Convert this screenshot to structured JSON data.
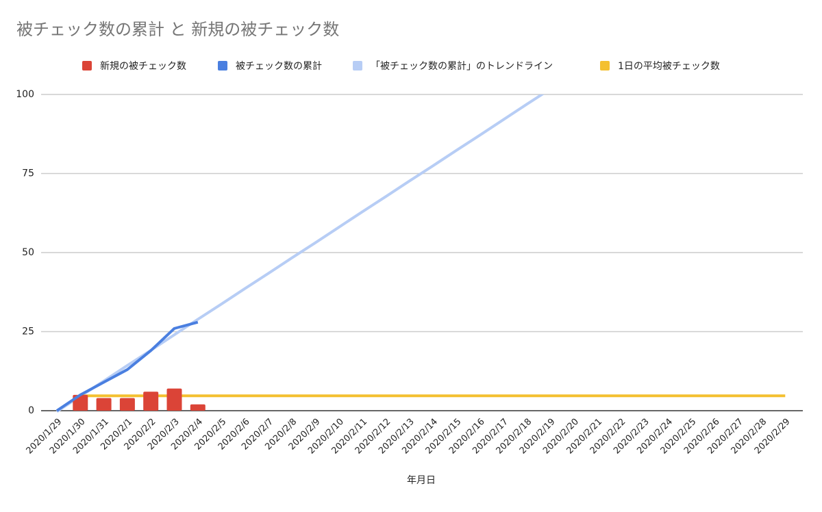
{
  "chart_data": {
    "type": "combo",
    "title": "被チェック数の累計 と 新規の被チェック数",
    "x_label": "年月日",
    "categories": [
      "2020/1/29",
      "2020/1/30",
      "2020/1/31",
      "2020/2/1",
      "2020/2/2",
      "2020/2/3",
      "2020/2/4",
      "2020/2/5",
      "2020/2/6",
      "2020/2/7",
      "2020/2/8",
      "2020/2/9",
      "2020/2/10",
      "2020/2/11",
      "2020/2/12",
      "2020/2/13",
      "2020/2/14",
      "2020/2/15",
      "2020/2/16",
      "2020/2/17",
      "2020/2/18",
      "2020/2/19",
      "2020/2/20",
      "2020/2/21",
      "2020/2/22",
      "2020/2/23",
      "2020/2/24",
      "2020/2/25",
      "2020/2/26",
      "2020/2/27",
      "2020/2/28",
      "2020/2/29"
    ],
    "series": [
      {
        "name": "新規の被チェック数",
        "type": "bar",
        "color": "#db4437",
        "values": [
          null,
          5,
          4,
          4,
          6,
          7,
          2,
          null,
          null,
          null,
          null,
          null,
          null,
          null,
          null,
          null,
          null,
          null,
          null,
          null,
          null,
          null,
          null,
          null,
          null,
          null,
          null,
          null,
          null,
          null,
          null,
          null
        ]
      },
      {
        "name": "被チェック数の累計",
        "type": "line",
        "color": "#4a7fe0",
        "values": [
          0,
          5,
          9,
          13,
          19,
          26,
          28,
          null,
          null,
          null,
          null,
          null,
          null,
          null,
          null,
          null,
          null,
          null,
          null,
          null,
          null,
          null,
          null,
          null,
          null,
          null,
          null,
          null,
          null,
          null,
          null,
          null
        ]
      },
      {
        "name": "「被チェック数の累計」のトレンドライン",
        "type": "line",
        "color": "#b7cdf5",
        "values": [
          -0.3,
          4.6,
          9.4,
          14.3,
          19.1,
          24,
          28.9,
          33.7,
          38.6,
          43.4,
          48.3,
          53.1,
          58,
          62.9,
          67.7,
          72.6,
          77.4,
          82.3,
          87.1,
          92,
          96.9,
          101.7,
          null,
          null,
          null,
          null,
          null,
          null,
          null,
          null,
          null,
          null
        ]
      },
      {
        "name": "1日の平均被チェック数",
        "type": "line",
        "color": "#f4c030",
        "values": [
          null,
          4.7,
          4.7,
          4.7,
          4.7,
          4.7,
          4.7,
          4.7,
          4.7,
          4.7,
          4.7,
          4.7,
          4.7,
          4.7,
          4.7,
          4.7,
          4.7,
          4.7,
          4.7,
          4.7,
          4.7,
          4.7,
          4.7,
          4.7,
          4.7,
          4.7,
          4.7,
          4.7,
          4.7,
          4.7,
          4.7,
          4.7
        ]
      }
    ],
    "ylim": [
      0,
      100
    ],
    "yticks": [
      0,
      25,
      50,
      75,
      100
    ],
    "grid": true,
    "legend": "top"
  }
}
